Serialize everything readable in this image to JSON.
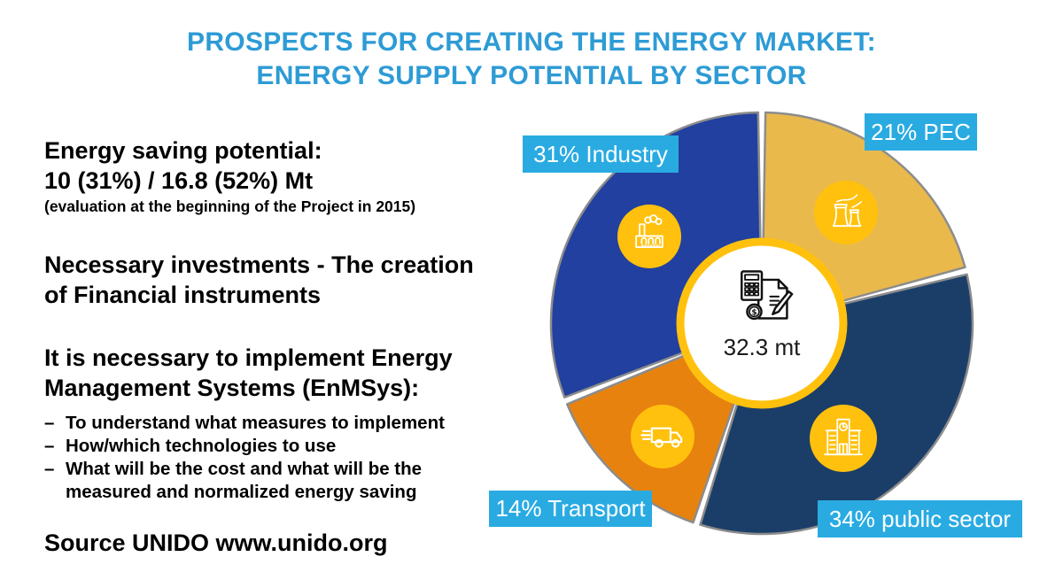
{
  "title": "PROSPECTS FOR CREATING THE ENERGY MARKET:\nENERGY SUPPLY POTENTIAL BY SECTOR",
  "left_panel": {
    "saving_heading": "Energy saving potential:",
    "saving_value": "10 (31%) / 16.8 (52%) Mt",
    "saving_note": "(evaluation at the beginning of the Project in 2015)",
    "investments": "Necessary investments - The creation\nof Financial instruments",
    "enms_heading": "It is necessary to implement Energy\nManagement Systems (EnMSys):",
    "bullet_prefix": "–",
    "bullets": [
      "To understand what measures to implement",
      "How/which technologies to use",
      "What will be the cost and what will be the\nmeasured and normalized energy saving"
    ],
    "source": "Source UNIDO www.unido.org"
  },
  "chart_data": {
    "type": "pie",
    "title": "ENERGY SUPPLY POTENTIAL BY SECTOR",
    "unit": "%",
    "direction": "clockwise",
    "start_angle_deg": 0,
    "donut": true,
    "segments": [
      {
        "name": "PEC",
        "value": 21,
        "label": "21% PEC",
        "color": "#E9B94C",
        "icon": "power-plant-icon"
      },
      {
        "name": "public sector",
        "value": 34,
        "label": "34% public sector",
        "color": "#1B3E69",
        "icon": "public-building-icon"
      },
      {
        "name": "Transport",
        "value": 14,
        "label": "14% Transport",
        "color": "#E8820E",
        "icon": "truck-icon"
      },
      {
        "name": "Industry",
        "value": 31,
        "label": "31% Industry",
        "color": "#21409F",
        "icon": "factory-icon"
      }
    ],
    "center_label": "32.3 mt",
    "center_icon": "calculator-document-icon"
  },
  "colors": {
    "title_text": "#2D9BD5",
    "label_box_bg": "#29ABE2",
    "label_box_text": "#FFFFFF",
    "body_text": "#000000",
    "slice_outline": "#8C8C8C",
    "icon_badge_bg": "#FFC10D",
    "center_ring": "#FFC10D",
    "center_bg": "#FFFFFF"
  }
}
